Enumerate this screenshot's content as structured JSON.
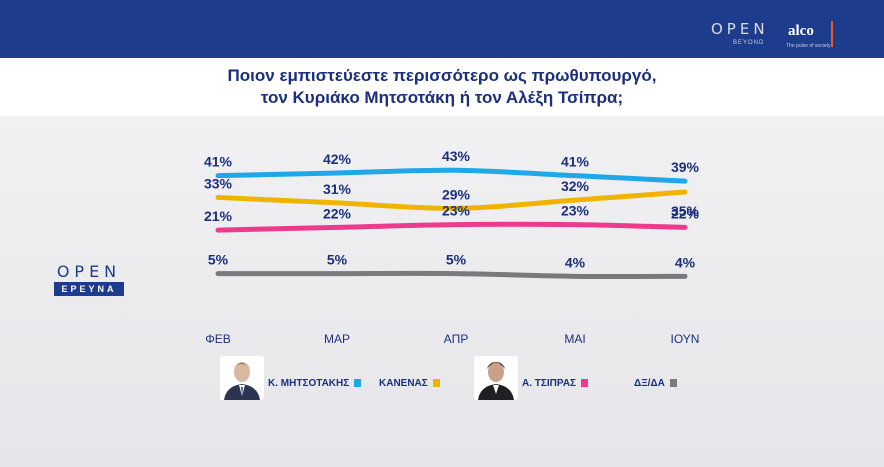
{
  "header": {
    "open_logo": "OPEN",
    "open_sub": "BEYOND",
    "alco_logo": "alco",
    "alco_sub": "The pulse of society"
  },
  "title": {
    "line1": "Ποιον εμπιστεύεστε περισσότερο ως πρωθυπουργό,",
    "line2": "τον Κυριάκο Μητσοτάκη ή τον Αλέξη Τσίπρα;"
  },
  "branding": {
    "top": "OPEN",
    "bottom": "ΕΡΕΥΝΑ"
  },
  "chart_data": {
    "type": "line",
    "title": "Ποιον εμπιστεύεστε περισσότερο ως πρωθυπουργό, τον Κυριάκο Μητσοτάκη ή τον Αλέξη Τσίπρα;",
    "categories": [
      "ΦΕΒ",
      "ΜΑΡ",
      "ΑΠΡ",
      "ΜΑΙ",
      "ΙΟΥΝ"
    ],
    "ylim": [
      0,
      50
    ],
    "grid": false,
    "legend_position": "bottom",
    "series": [
      {
        "name": "Κ. ΜΗΤΣΟΤΑΚΗΣ",
        "color": "#1ea8e8",
        "values": [
          41,
          42,
          43,
          41,
          39
        ]
      },
      {
        "name": "ΚΑΝΕΝΑΣ",
        "color": "#f0b400",
        "values": [
          33,
          31,
          29,
          32,
          35
        ]
      },
      {
        "name": "Α. ΤΣΙΠΡΑΣ",
        "color": "#ee3a8c",
        "values": [
          21,
          22,
          23,
          23,
          22
        ]
      },
      {
        "name": "ΔΞ/ΔΑ",
        "color": "#7a7a7a",
        "values": [
          5,
          5,
          5,
          4,
          4
        ]
      }
    ]
  },
  "labels": {
    "mitsotakis": [
      "41%",
      "42%",
      "43%",
      "41%",
      "39%"
    ],
    "kanenas": [
      "33%",
      "31%",
      "29%",
      "32%",
      "35%"
    ],
    "tsipras": [
      "21%",
      "22%",
      "23%",
      "23%",
      "22%"
    ],
    "dkda": [
      "5%",
      "5%",
      "5%",
      "4%",
      "4%"
    ]
  }
}
